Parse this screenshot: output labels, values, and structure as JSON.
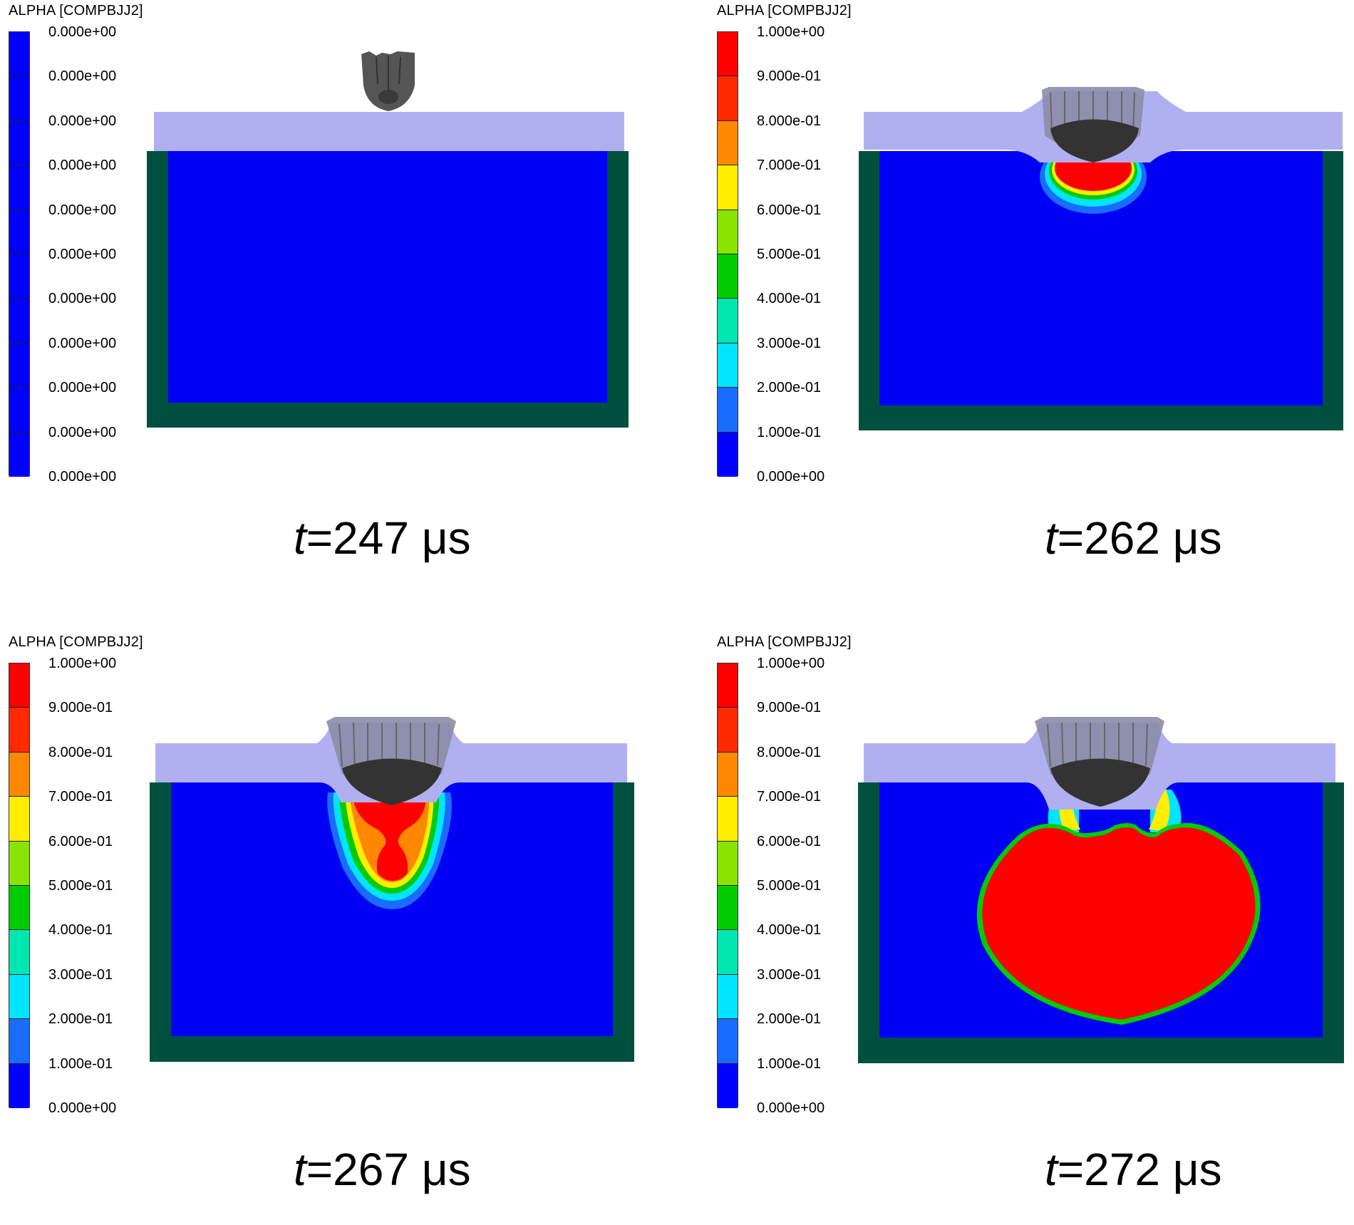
{
  "legend_colors": [
    "#0000ff",
    "#1a6cff",
    "#00e5ff",
    "#00e6b0",
    "#00cc00",
    "#88e400",
    "#ffee00",
    "#ff8800",
    "#ff2a00",
    "#ff0000"
  ],
  "panels": [
    {
      "legend_title": "ALPHA [COMPBJJ2]",
      "legend_values": [
        "0.000e+00",
        "0.000e+00",
        "0.000e+00",
        "0.000e+00",
        "0.000e+00",
        "0.000e+00",
        "0.000e+00",
        "0.000e+00",
        "0.000e+00",
        "0.000e+00",
        "0.000e+00"
      ],
      "legend_uniform": true,
      "time_t": "t",
      "time_rest": "=247 μs"
    },
    {
      "legend_title": "ALPHA [COMPBJJ2]",
      "legend_values": [
        "1.000e+00",
        "9.000e-01",
        "8.000e-01",
        "7.000e-01",
        "6.000e-01",
        "5.000e-01",
        "4.000e-01",
        "3.000e-01",
        "2.000e-01",
        "1.000e-01",
        "0.000e+00"
      ],
      "legend_uniform": false,
      "time_t": "t",
      "time_rest": "=262 μs"
    },
    {
      "legend_title": "ALPHA [COMPBJJ2]",
      "legend_values": [
        "1.000e+00",
        "9.000e-01",
        "8.000e-01",
        "7.000e-01",
        "6.000e-01",
        "5.000e-01",
        "4.000e-01",
        "3.000e-01",
        "2.000e-01",
        "1.000e-01",
        "0.000e+00"
      ],
      "legend_uniform": false,
      "time_t": "t",
      "time_rest": "=267 μs"
    },
    {
      "legend_title": "ALPHA [COMPBJJ2]",
      "legend_values": [
        "1.000e+00",
        "9.000e-01",
        "8.000e-01",
        "7.000e-01",
        "6.000e-01",
        "5.000e-01",
        "4.000e-01",
        "3.000e-01",
        "2.000e-01",
        "1.000e-01",
        "0.000e+00"
      ],
      "legend_uniform": false,
      "time_t": "t",
      "time_rest": "=272 μs"
    }
  ]
}
